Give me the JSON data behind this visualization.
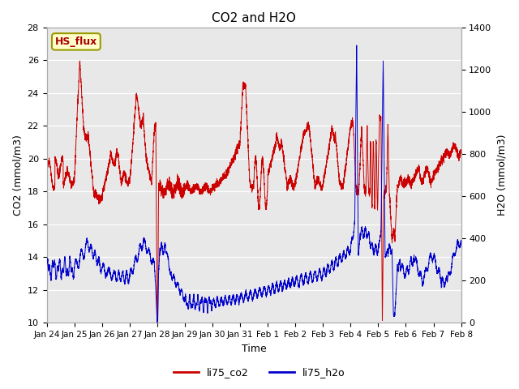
{
  "title": "CO2 and H2O",
  "xlabel": "Time",
  "ylabel_left": "CO2 (mmol/m3)",
  "ylabel_right": "H2O (mmol/m3)",
  "ylim_left": [
    10,
    28
  ],
  "ylim_right": [
    0,
    1400
  ],
  "yticks_left": [
    10,
    12,
    14,
    16,
    18,
    20,
    22,
    24,
    26,
    28
  ],
  "yticks_right": [
    0,
    200,
    400,
    600,
    800,
    1000,
    1200,
    1400
  ],
  "line_co2_color": "#cc0000",
  "line_h2o_color": "#0000cc",
  "background_color": "#ffffff",
  "plot_bg_color": "#e8e8e8",
  "grid_color": "#ffffff",
  "hs_flux_box_color": "#ffffcc",
  "hs_flux_border_color": "#999900",
  "hs_flux_text_color": "#aa0000",
  "legend_co2": "li75_co2",
  "legend_h2o": "li75_h2o",
  "x_tick_labels": [
    "Jan 24",
    "Jan 25",
    "Jan 26",
    "Jan 27",
    "Jan 28",
    "Jan 29",
    "Jan 30",
    "Jan 31",
    "Feb 1",
    "Feb 2",
    "Feb 3",
    "Feb 4",
    "Feb 5",
    "Feb 6",
    "Feb 7",
    "Feb 8"
  ],
  "n_points": 5000,
  "title_fontsize": 11
}
